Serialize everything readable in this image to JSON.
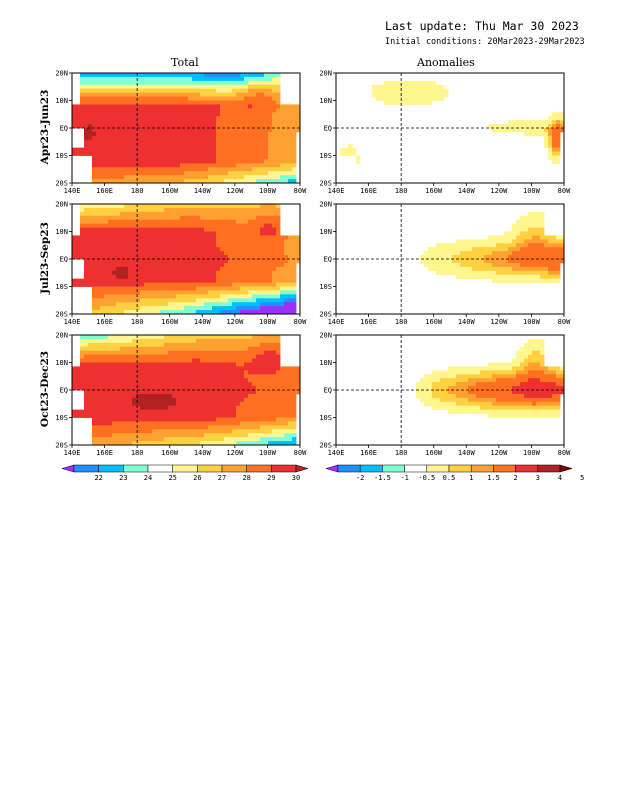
{
  "header": {
    "last_update": "Last update: Thu Mar 30 2023",
    "initial_conditions": "Initial conditions: 20Mar2023-29Mar2023"
  },
  "columns": [
    "Total",
    "Anomalies"
  ],
  "rows": [
    "Apr23-Jun23",
    "Jul23-Sep23",
    "Oct23-Dec23"
  ],
  "chart_data": [
    {
      "type": "heatmap",
      "title": "Total",
      "x_ticks": [
        "140E",
        "160E",
        "180",
        "160W",
        "140W",
        "120W",
        "100W",
        "80W"
      ],
      "y_ticks": [
        "20N",
        "10N",
        "EQ",
        "10S",
        "20S"
      ],
      "colorbar": {
        "labels": [
          "22",
          "23",
          "24",
          "25",
          "26",
          "27",
          "28",
          "29",
          "30"
        ],
        "colors": [
          "#9b30ff",
          "#1e90ff",
          "#00bfff",
          "#7fffd4",
          "#ffffff",
          "#fff68f",
          "#ffd040",
          "#ffa030",
          "#ff7020",
          "#ee3030",
          "#b22222"
        ]
      }
    },
    {
      "type": "heatmap",
      "title": "Anomalies",
      "x_ticks": [
        "140E",
        "160E",
        "180",
        "160W",
        "140W",
        "120W",
        "100W",
        "80W"
      ],
      "y_ticks": [
        "20N",
        "10N",
        "EQ",
        "10S",
        "20S"
      ],
      "colorbar": {
        "labels": [
          "-2",
          "-1.5",
          "-1",
          "-0.5",
          "0.5",
          "1",
          "1.5",
          "2",
          "3",
          "4",
          "5"
        ],
        "colors": [
          "#9b30ff",
          "#1e90ff",
          "#00bfff",
          "#7fffd4",
          "#ffffff",
          "#fff68f",
          "#ffd040",
          "#ffa030",
          "#ff7020",
          "#ee3030",
          "#b22222",
          "#7a0000"
        ]
      }
    }
  ]
}
